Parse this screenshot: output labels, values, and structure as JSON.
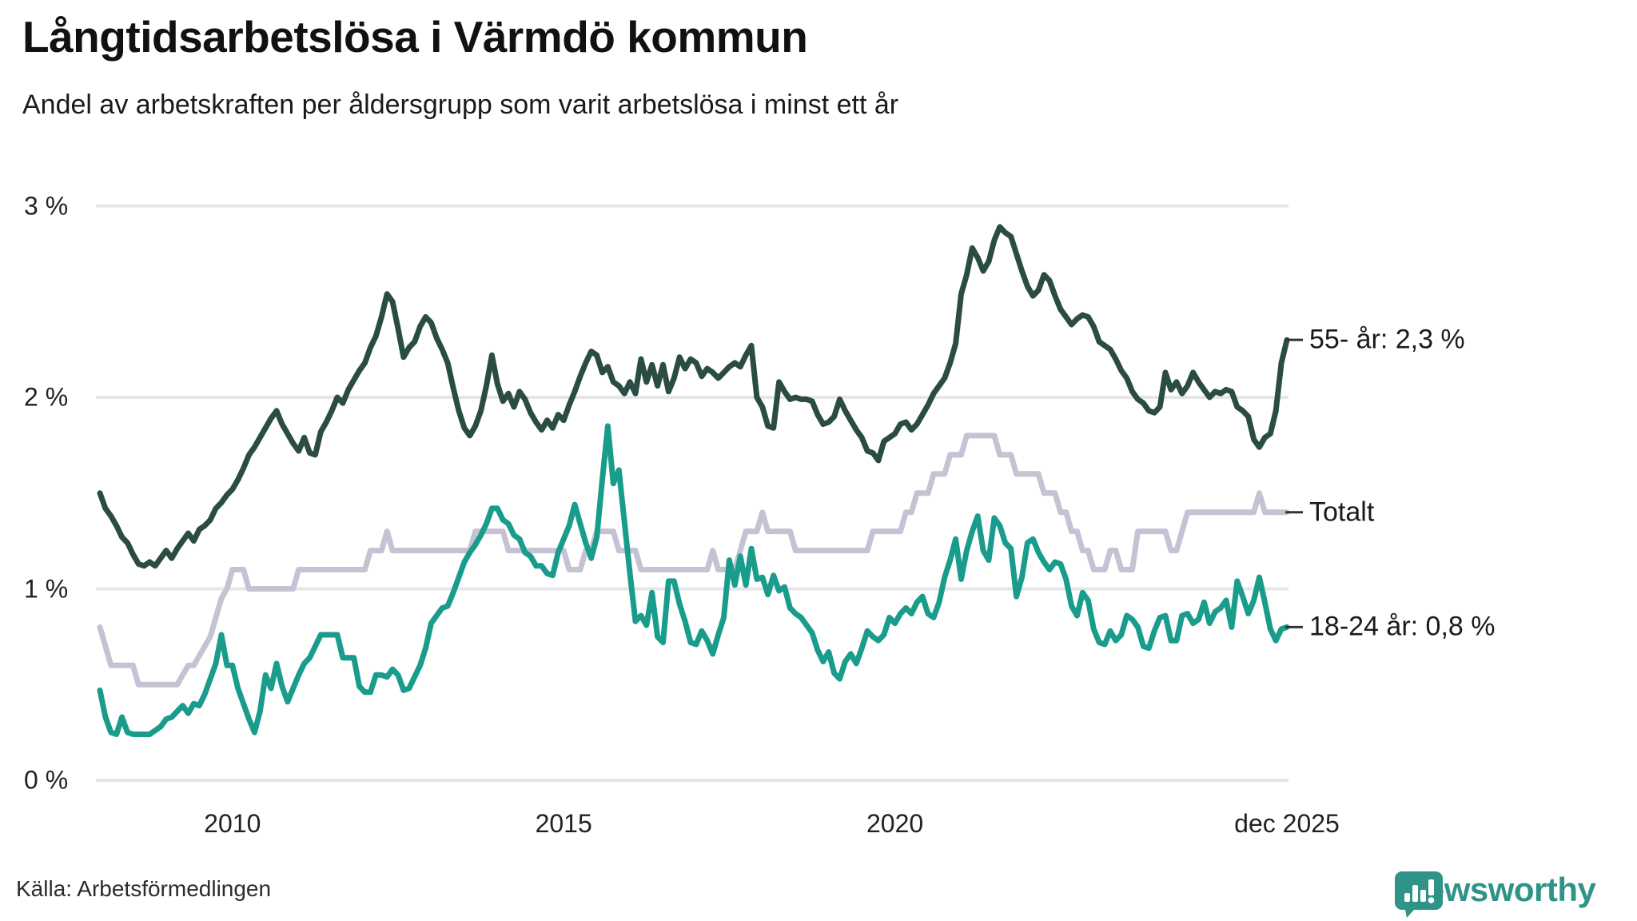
{
  "header": {
    "title": "Långtidsarbetslösa i Värmdö kommun",
    "subtitle": "Andel av arbetskraften per åldersgrupp som varit arbetslösa i minst ett år"
  },
  "source_label": "Källa: Arbetsförmedlingen",
  "brand": {
    "name": "Newsworthy",
    "color": "#2f9388"
  },
  "colors": {
    "grid": "#e6e5e9",
    "axis_text": "#222222",
    "label_text": "#1a1a1a",
    "tick_dash": "#333333"
  },
  "chart_data": {
    "type": "line",
    "title": "Långtidsarbetslösa i Värmdö kommun",
    "subtitle": "Andel av arbetskraften per åldersgrupp som varit arbetslösa i minst ett år",
    "x_start": "2008-01",
    "x_end": "2025-12",
    "months_total": 216,
    "grid": true,
    "legend_position": "right-end-labels",
    "ylim": [
      0,
      3
    ],
    "y_ticks": [
      {
        "value": 0,
        "label": "0 %"
      },
      {
        "value": 1,
        "label": "1 %"
      },
      {
        "value": 2,
        "label": "2 %"
      },
      {
        "value": 3,
        "label": "3 %"
      }
    ],
    "x_ticks": [
      {
        "label": "2010",
        "month_index": 24
      },
      {
        "label": "2015",
        "month_index": 84
      },
      {
        "label": "2020",
        "month_index": 144
      },
      {
        "label": "dec 2025",
        "month_index": 215
      }
    ],
    "series": [
      {
        "name": "Totalt",
        "end_label": "Totalt",
        "end_value": 1.4,
        "color": "#c5c2d3",
        "values": [
          0.8,
          0.7,
          0.6,
          0.6,
          0.6,
          0.6,
          0.6,
          0.5,
          0.5,
          0.5,
          0.5,
          0.5,
          0.5,
          0.5,
          0.5,
          0.55,
          0.6,
          0.6,
          0.65,
          0.7,
          0.75,
          0.85,
          0.95,
          1.0,
          1.1,
          1.1,
          1.1,
          1.0,
          1.0,
          1.0,
          1.0,
          1.0,
          1.0,
          1.0,
          1.0,
          1.0,
          1.1,
          1.1,
          1.1,
          1.1,
          1.1,
          1.1,
          1.1,
          1.1,
          1.1,
          1.1,
          1.1,
          1.1,
          1.1,
          1.2,
          1.2,
          1.2,
          1.3,
          1.2,
          1.2,
          1.2,
          1.2,
          1.2,
          1.2,
          1.2,
          1.2,
          1.2,
          1.2,
          1.2,
          1.2,
          1.2,
          1.2,
          1.2,
          1.3,
          1.3,
          1.3,
          1.3,
          1.3,
          1.3,
          1.2,
          1.2,
          1.2,
          1.2,
          1.2,
          1.2,
          1.2,
          1.2,
          1.2,
          1.2,
          1.2,
          1.1,
          1.1,
          1.1,
          1.2,
          1.2,
          1.3,
          1.3,
          1.3,
          1.3,
          1.2,
          1.2,
          1.2,
          1.2,
          1.1,
          1.1,
          1.1,
          1.1,
          1.1,
          1.1,
          1.1,
          1.1,
          1.1,
          1.1,
          1.1,
          1.1,
          1.1,
          1.2,
          1.1,
          1.1,
          1.1,
          1.1,
          1.2,
          1.3,
          1.3,
          1.3,
          1.4,
          1.3,
          1.3,
          1.3,
          1.3,
          1.3,
          1.2,
          1.2,
          1.2,
          1.2,
          1.2,
          1.2,
          1.2,
          1.2,
          1.2,
          1.2,
          1.2,
          1.2,
          1.2,
          1.2,
          1.3,
          1.3,
          1.3,
          1.3,
          1.3,
          1.3,
          1.4,
          1.4,
          1.5,
          1.5,
          1.5,
          1.6,
          1.6,
          1.6,
          1.7,
          1.7,
          1.7,
          1.8,
          1.8,
          1.8,
          1.8,
          1.8,
          1.8,
          1.7,
          1.7,
          1.7,
          1.6,
          1.6,
          1.6,
          1.6,
          1.6,
          1.5,
          1.5,
          1.5,
          1.4,
          1.4,
          1.3,
          1.3,
          1.2,
          1.2,
          1.1,
          1.1,
          1.1,
          1.2,
          1.2,
          1.1,
          1.1,
          1.1,
          1.3,
          1.3,
          1.3,
          1.3,
          1.3,
          1.3,
          1.2,
          1.2,
          1.3,
          1.4,
          1.4,
          1.4,
          1.4,
          1.4,
          1.4,
          1.4,
          1.4,
          1.4,
          1.4,
          1.4,
          1.4,
          1.4,
          1.5,
          1.4,
          1.4,
          1.4,
          1.4,
          1.4
        ]
      },
      {
        "name": "55- år",
        "end_label": "55- år: 2,3 %",
        "end_value": 2.3,
        "color": "#2b4c43",
        "values": [
          1.5,
          1.42,
          1.38,
          1.33,
          1.27,
          1.24,
          1.18,
          1.13,
          1.12,
          1.14,
          1.12,
          1.16,
          1.2,
          1.16,
          1.21,
          1.25,
          1.29,
          1.25,
          1.31,
          1.33,
          1.36,
          1.42,
          1.45,
          1.49,
          1.52,
          1.57,
          1.63,
          1.7,
          1.74,
          1.79,
          1.84,
          1.89,
          1.93,
          1.86,
          1.81,
          1.76,
          1.72,
          1.79,
          1.71,
          1.7,
          1.82,
          1.87,
          1.93,
          2.0,
          1.97,
          2.04,
          2.09,
          2.14,
          2.18,
          2.26,
          2.32,
          2.42,
          2.54,
          2.5,
          2.36,
          2.21,
          2.26,
          2.29,
          2.37,
          2.42,
          2.39,
          2.31,
          2.25,
          2.18,
          2.05,
          1.93,
          1.84,
          1.8,
          1.85,
          1.93,
          2.06,
          2.22,
          2.07,
          1.98,
          2.02,
          1.95,
          2.03,
          1.99,
          1.92,
          1.87,
          1.83,
          1.88,
          1.84,
          1.91,
          1.88,
          1.96,
          2.03,
          2.11,
          2.18,
          2.24,
          2.22,
          2.13,
          2.16,
          2.08,
          2.06,
          2.02,
          2.08,
          2.02,
          2.2,
          2.08,
          2.17,
          2.06,
          2.17,
          2.03,
          2.1,
          2.21,
          2.15,
          2.2,
          2.18,
          2.11,
          2.15,
          2.13,
          2.1,
          2.13,
          2.16,
          2.18,
          2.16,
          2.22,
          2.27,
          2.0,
          1.95,
          1.85,
          1.84,
          2.08,
          2.03,
          1.99,
          2.0,
          1.99,
          1.99,
          1.98,
          1.91,
          1.86,
          1.87,
          1.9,
          1.99,
          1.93,
          1.88,
          1.83,
          1.79,
          1.72,
          1.71,
          1.67,
          1.77,
          1.79,
          1.81,
          1.86,
          1.87,
          1.83,
          1.86,
          1.91,
          1.96,
          2.02,
          2.06,
          2.1,
          2.18,
          2.28,
          2.54,
          2.64,
          2.78,
          2.73,
          2.66,
          2.71,
          2.82,
          2.89,
          2.86,
          2.84,
          2.75,
          2.66,
          2.58,
          2.53,
          2.56,
          2.64,
          2.61,
          2.53,
          2.46,
          2.42,
          2.38,
          2.41,
          2.43,
          2.42,
          2.37,
          2.29,
          2.27,
          2.25,
          2.2,
          2.14,
          2.1,
          2.03,
          1.99,
          1.97,
          1.93,
          1.92,
          1.95,
          2.13,
          2.04,
          2.08,
          2.02,
          2.06,
          2.13,
          2.08,
          2.04,
          2.0,
          2.03,
          2.02,
          2.04,
          2.03,
          1.95,
          1.93,
          1.9,
          1.78,
          1.74,
          1.79,
          1.81,
          1.93,
          2.18,
          2.3
        ]
      },
      {
        "name": "18-24 år",
        "end_label": "18-24 år: 0,8 %",
        "end_value": 0.8,
        "color": "#1a9c8c",
        "values": [
          0.47,
          0.33,
          0.25,
          0.24,
          0.33,
          0.25,
          0.24,
          0.24,
          0.24,
          0.24,
          0.26,
          0.28,
          0.32,
          0.33,
          0.36,
          0.39,
          0.35,
          0.4,
          0.39,
          0.45,
          0.53,
          0.61,
          0.76,
          0.6,
          0.6,
          0.48,
          0.4,
          0.32,
          0.25,
          0.36,
          0.55,
          0.48,
          0.61,
          0.49,
          0.41,
          0.48,
          0.55,
          0.61,
          0.64,
          0.7,
          0.76,
          0.76,
          0.76,
          0.76,
          0.64,
          0.64,
          0.64,
          0.49,
          0.46,
          0.46,
          0.55,
          0.55,
          0.54,
          0.58,
          0.55,
          0.47,
          0.48,
          0.54,
          0.6,
          0.69,
          0.82,
          0.86,
          0.9,
          0.91,
          0.98,
          1.06,
          1.14,
          1.19,
          1.23,
          1.28,
          1.34,
          1.42,
          1.42,
          1.36,
          1.34,
          1.28,
          1.26,
          1.19,
          1.17,
          1.12,
          1.12,
          1.08,
          1.07,
          1.19,
          1.26,
          1.33,
          1.44,
          1.34,
          1.24,
          1.16,
          1.27,
          1.57,
          1.85,
          1.55,
          1.62,
          1.35,
          1.08,
          0.83,
          0.86,
          0.81,
          0.98,
          0.75,
          0.72,
          1.04,
          1.04,
          0.92,
          0.83,
          0.72,
          0.71,
          0.78,
          0.73,
          0.66,
          0.76,
          0.85,
          1.15,
          1.02,
          1.17,
          1.02,
          1.21,
          1.05,
          1.06,
          0.97,
          1.07,
          0.99,
          1.01,
          0.9,
          0.87,
          0.85,
          0.81,
          0.77,
          0.68,
          0.62,
          0.67,
          0.56,
          0.53,
          0.62,
          0.66,
          0.61,
          0.69,
          0.78,
          0.75,
          0.73,
          0.76,
          0.85,
          0.82,
          0.87,
          0.9,
          0.87,
          0.93,
          0.96,
          0.87,
          0.85,
          0.93,
          1.06,
          1.15,
          1.26,
          1.05,
          1.2,
          1.3,
          1.38,
          1.2,
          1.15,
          1.37,
          1.33,
          1.24,
          1.21,
          0.96,
          1.06,
          1.24,
          1.26,
          1.19,
          1.14,
          1.1,
          1.14,
          1.13,
          1.05,
          0.91,
          0.86,
          0.98,
          0.94,
          0.79,
          0.72,
          0.71,
          0.78,
          0.73,
          0.76,
          0.86,
          0.84,
          0.8,
          0.7,
          0.69,
          0.78,
          0.85,
          0.86,
          0.73,
          0.73,
          0.86,
          0.87,
          0.82,
          0.84,
          0.93,
          0.82,
          0.88,
          0.9,
          0.94,
          0.8,
          1.04,
          0.96,
          0.87,
          0.94,
          1.06,
          0.93,
          0.79,
          0.73,
          0.79,
          0.8
        ]
      }
    ]
  }
}
